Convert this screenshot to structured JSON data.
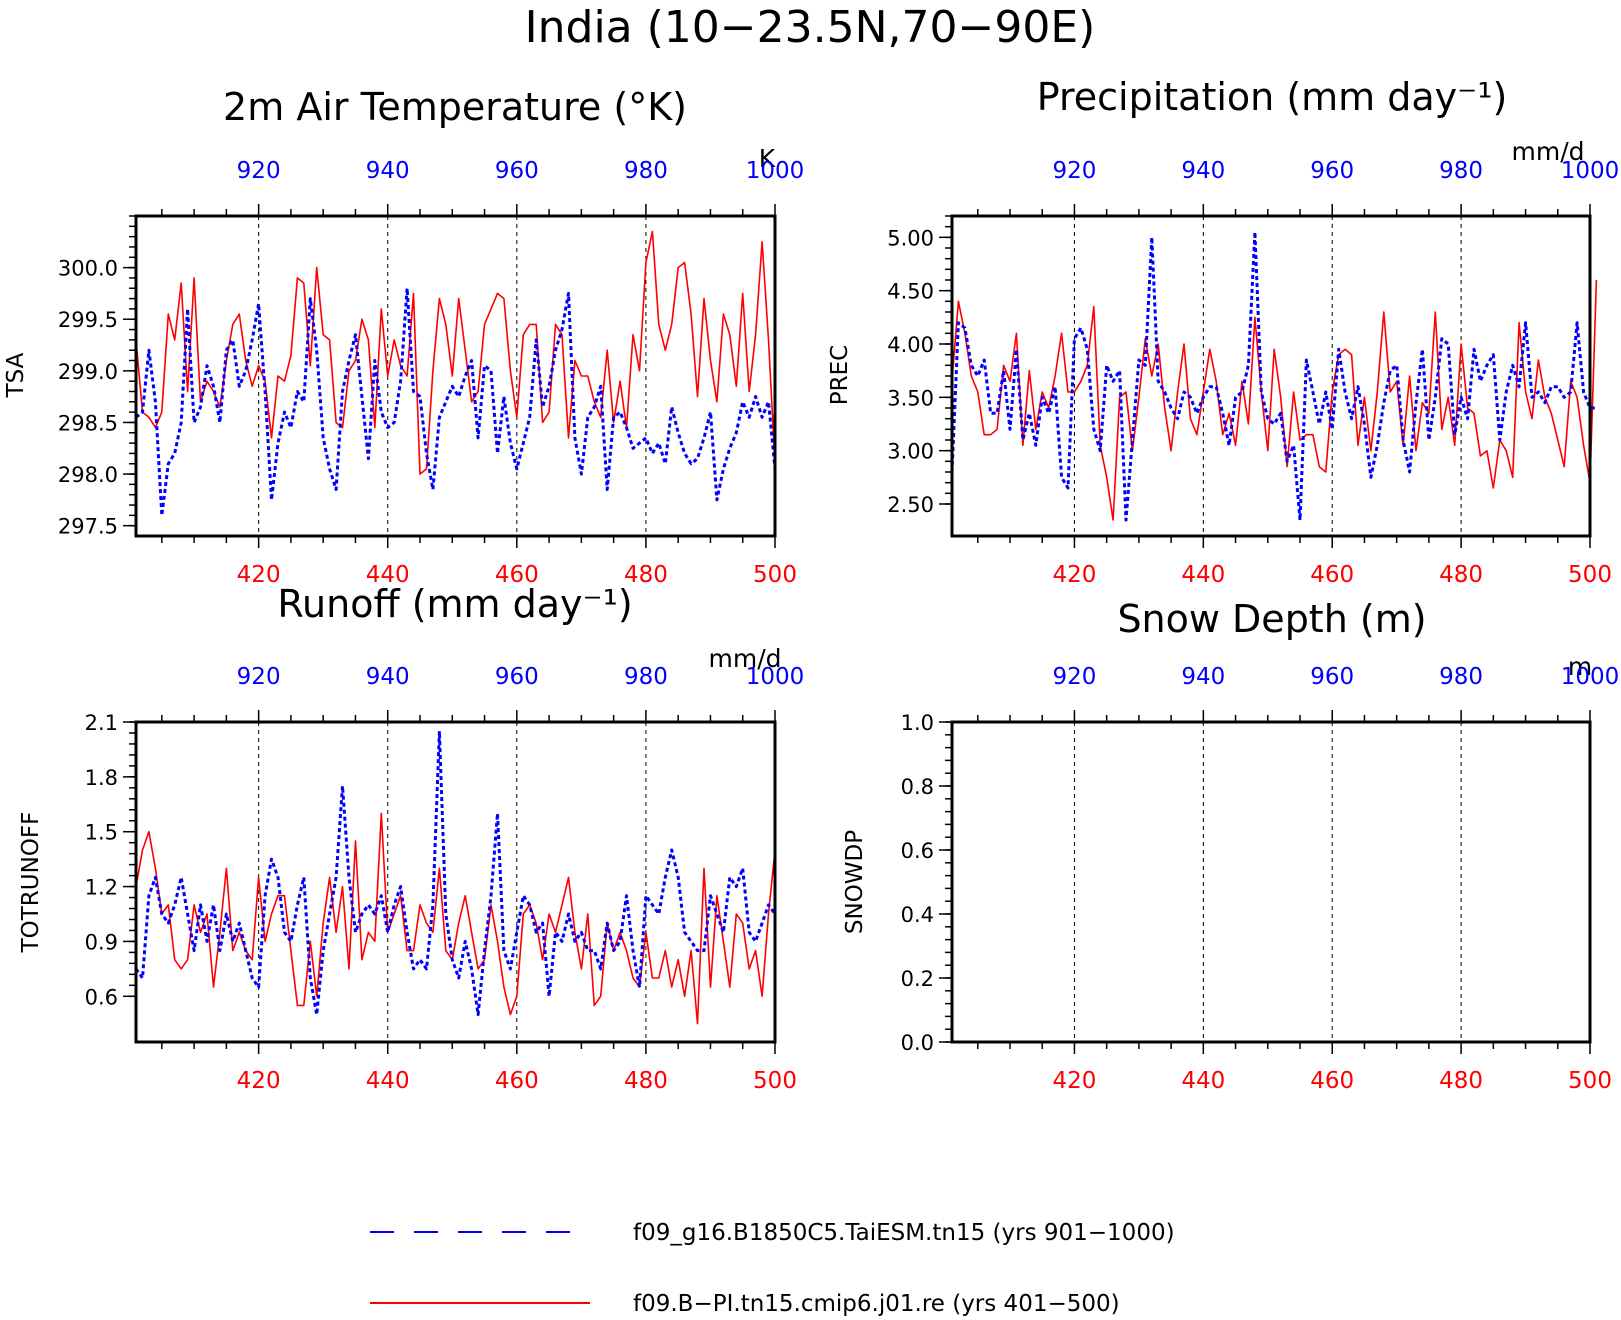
{
  "figure": {
    "title": "India (10−23.5N,70−90E)"
  },
  "legend": {
    "placement": "bottom-center",
    "entries": [
      {
        "label": "f09_g16.B1850C5.TaiESM.tn15 (yrs 901−1000)",
        "color": "#0000ff",
        "style": "dashed"
      },
      {
        "label": "f09.B−PI.tn15.cmip6.j01.re (yrs 401−500)",
        "color": "#ff0000",
        "style": "solid"
      }
    ]
  },
  "panels": [
    {
      "title": "2m Air Temperature (°K)",
      "ylabel": "TSA",
      "unit": "K",
      "yticks": [
        "297.5",
        "298.0",
        "298.5",
        "299.0",
        "299.5",
        "300.0"
      ],
      "top_ticks": [
        "920",
        "940",
        "960",
        "980",
        "1000"
      ],
      "bottom_ticks": [
        "420",
        "440",
        "460",
        "480",
        "500"
      ]
    },
    {
      "title": "Precipitation (mm day⁻¹)",
      "ylabel": "PREC",
      "unit": "mm/d",
      "yticks": [
        "2.50",
        "3.00",
        "3.50",
        "4.00",
        "4.50",
        "5.00"
      ],
      "top_ticks": [
        "920",
        "940",
        "960",
        "980",
        "1000"
      ],
      "bottom_ticks": [
        "420",
        "440",
        "460",
        "480",
        "500"
      ]
    },
    {
      "title": "Runoff (mm day⁻¹)",
      "ylabel": "TOTRUNOFF",
      "unit": "mm/d",
      "yticks": [
        "0.6",
        "0.9",
        "1.2",
        "1.5",
        "1.8",
        "2.1"
      ],
      "top_ticks": [
        "920",
        "940",
        "960",
        "980",
        "1000"
      ],
      "bottom_ticks": [
        "420",
        "440",
        "460",
        "480",
        "500"
      ]
    },
    {
      "title": "Snow Depth (m)",
      "ylabel": "SNOWDP",
      "unit": "m",
      "yticks": [
        "0.0",
        "0.2",
        "0.4",
        "0.6",
        "0.8",
        "1.0"
      ],
      "top_ticks": [
        "920",
        "940",
        "960",
        "980",
        "1000"
      ],
      "bottom_ticks": [
        "420",
        "440",
        "460",
        "480",
        "500"
      ]
    }
  ],
  "chart_data": [
    {
      "type": "line",
      "title": "2m Air Temperature (°K)",
      "ylabel": "TSA",
      "xlim": [
        401,
        500
      ],
      "ylim": [
        297.4,
        300.5
      ],
      "x2lim": [
        901,
        1000
      ],
      "grid": "vertical dashed at 420, 440, 460, 480",
      "series": [
        {
          "name": "f09.B−PI.tn15.cmip6.j01.re (yrs 401−500)",
          "axis": "bottom",
          "color": "#ff0000",
          "style": "solid",
          "x_start": 401,
          "values": [
            299.3,
            298.6,
            298.55,
            298.45,
            298.6,
            299.55,
            299.3,
            299.85,
            298.8,
            299.9,
            298.7,
            298.9,
            298.8,
            298.65,
            299.1,
            299.45,
            299.55,
            299.1,
            298.85,
            299.05,
            298.9,
            298.35,
            298.95,
            298.9,
            299.15,
            299.9,
            299.85,
            299.05,
            300.0,
            299.35,
            299.3,
            298.5,
            298.45,
            299.0,
            299.1,
            299.5,
            299.3,
            298.45,
            299.6,
            298.95,
            299.3,
            299.05,
            298.95,
            299.75,
            298.0,
            298.05,
            299.0,
            299.7,
            299.45,
            298.95,
            299.7,
            299.2,
            298.7,
            298.8,
            299.45,
            299.6,
            299.75,
            299.7,
            299.0,
            298.55,
            299.35,
            299.45,
            299.45,
            298.5,
            298.6,
            299.45,
            299.35,
            298.35,
            299.1,
            298.95,
            298.95,
            298.7,
            298.55,
            299.2,
            298.5,
            298.9,
            298.45,
            299.35,
            299.0,
            300.05,
            300.35,
            299.45,
            299.2,
            299.45,
            300.0,
            300.05,
            299.55,
            298.75,
            299.7,
            299.1,
            298.7,
            299.55,
            299.35,
            298.85,
            299.75,
            298.8,
            299.35,
            300.25,
            299.3,
            298.1
          ]
        },
        {
          "name": "f09_g16.B1850C5.TaiESM.tn15 (yrs 901−1000)",
          "axis": "top",
          "color": "#0000ff",
          "style": "dashed",
          "x_start": 901,
          "values": [
            298.55,
            298.6,
            299.2,
            298.7,
            297.6,
            298.1,
            298.2,
            298.5,
            299.6,
            298.5,
            298.65,
            299.05,
            298.85,
            298.5,
            299.2,
            299.3,
            298.85,
            299.0,
            299.3,
            299.65,
            298.8,
            297.75,
            298.3,
            298.6,
            298.45,
            298.8,
            298.7,
            299.7,
            299.2,
            298.35,
            298.05,
            297.85,
            298.8,
            299.1,
            299.35,
            298.75,
            298.15,
            299.1,
            298.6,
            298.45,
            298.5,
            298.9,
            299.8,
            298.8,
            298.75,
            298.2,
            297.85,
            298.55,
            298.7,
            298.85,
            298.75,
            298.95,
            299.1,
            298.35,
            299.05,
            299.0,
            298.2,
            298.75,
            298.3,
            298.05,
            298.3,
            298.55,
            299.3,
            298.65,
            298.85,
            299.2,
            299.4,
            299.75,
            298.35,
            298.0,
            298.55,
            298.65,
            298.85,
            297.85,
            298.55,
            298.6,
            298.45,
            298.25,
            298.3,
            298.35,
            298.2,
            298.3,
            298.1,
            298.65,
            298.4,
            298.2,
            298.1,
            298.15,
            298.35,
            298.6,
            297.75,
            298.05,
            298.25,
            298.4,
            298.7,
            298.55,
            298.75,
            298.55,
            298.7,
            298.05
          ]
        }
      ]
    },
    {
      "type": "line",
      "title": "Precipitation (mm day⁻¹)",
      "ylabel": "PREC",
      "xlim": [
        401,
        500
      ],
      "ylim": [
        2.2,
        5.2
      ],
      "x2lim": [
        901,
        1000
      ],
      "grid": "vertical dashed at 420, 440, 460, 480",
      "series": [
        {
          "name": "f09.B−PI.tn15.cmip6.j01.re (yrs 401−500)",
          "axis": "bottom",
          "color": "#ff0000",
          "style": "solid",
          "x_start": 401,
          "values": [
            3.65,
            4.4,
            4.1,
            3.7,
            3.55,
            3.15,
            3.15,
            3.2,
            3.8,
            3.65,
            4.1,
            3.05,
            3.75,
            3.2,
            3.55,
            3.4,
            3.7,
            4.1,
            3.55,
            3.55,
            3.65,
            3.8,
            4.35,
            3.05,
            2.75,
            2.35,
            3.5,
            3.55,
            3.0,
            3.5,
            4.05,
            3.7,
            4.0,
            3.4,
            3.0,
            3.55,
            4.0,
            3.3,
            3.15,
            3.55,
            3.95,
            3.65,
            3.15,
            3.35,
            3.05,
            3.65,
            3.25,
            4.25,
            3.55,
            3.0,
            3.95,
            3.5,
            2.85,
            3.55,
            3.1,
            3.15,
            3.15,
            2.85,
            2.8,
            3.55,
            3.9,
            3.95,
            3.9,
            3.05,
            3.5,
            3.0,
            3.55,
            4.3,
            3.55,
            3.65,
            3.05,
            3.7,
            3.0,
            3.45,
            3.35,
            4.3,
            3.2,
            3.5,
            3.05,
            4.0,
            3.4,
            3.35,
            2.95,
            3.0,
            2.65,
            3.1,
            3.0,
            2.75,
            4.2,
            3.55,
            3.3,
            3.85,
            3.5,
            3.35,
            3.1,
            2.85,
            3.65,
            3.5,
            3.05,
            2.7,
            4.6
          ]
        },
        {
          "name": "f09_g16.B1850C5.TaiESM.tn15 (yrs 901−1000)",
          "axis": "top",
          "color": "#0000ff",
          "style": "dashed",
          "x_start": 901,
          "values": [
            2.8,
            4.2,
            4.15,
            3.8,
            3.7,
            3.85,
            3.35,
            3.35,
            3.75,
            3.2,
            3.95,
            3.1,
            3.35,
            3.05,
            3.5,
            3.35,
            3.6,
            2.75,
            2.65,
            4.05,
            4.15,
            3.95,
            3.2,
            3.0,
            3.8,
            3.65,
            3.75,
            2.35,
            3.1,
            3.85,
            3.8,
            5.0,
            3.65,
            3.55,
            3.4,
            3.3,
            3.55,
            3.5,
            3.35,
            3.5,
            3.6,
            3.6,
            3.35,
            3.05,
            3.5,
            3.55,
            3.8,
            5.05,
            3.55,
            3.3,
            3.25,
            3.35,
            2.9,
            3.05,
            2.35,
            3.85,
            3.55,
            3.25,
            3.55,
            3.2,
            3.95,
            3.55,
            3.3,
            3.6,
            3.25,
            2.75,
            3.05,
            3.45,
            3.75,
            3.8,
            3.1,
            2.8,
            3.45,
            3.95,
            3.1,
            3.5,
            4.05,
            4.0,
            3.15,
            3.5,
            3.3,
            3.95,
            3.65,
            3.8,
            3.9,
            3.1,
            3.55,
            3.8,
            3.6,
            4.2,
            3.5,
            3.55,
            3.45,
            3.6,
            3.6,
            3.5,
            3.55,
            4.2,
            3.55,
            3.4,
            3.4
          ]
        }
      ]
    },
    {
      "type": "line",
      "title": "Runoff (mm day⁻¹)",
      "ylabel": "TOTRUNOFF",
      "xlim": [
        401,
        500
      ],
      "ylim": [
        0.35,
        2.1
      ],
      "x2lim": [
        901,
        1000
      ],
      "grid": "vertical dashed at 420, 440, 460, 480",
      "series": [
        {
          "name": "f09.B−PI.tn15.cmip6.j01.re (yrs 401−500)",
          "axis": "bottom",
          "color": "#ff0000",
          "style": "solid",
          "x_start": 401,
          "values": [
            1.2,
            1.4,
            1.5,
            1.3,
            1.05,
            1.1,
            0.8,
            0.75,
            0.8,
            1.1,
            0.95,
            1.05,
            0.65,
            0.95,
            1.3,
            0.85,
            0.95,
            0.85,
            0.8,
            1.25,
            0.9,
            1.05,
            1.15,
            1.15,
            0.85,
            0.55,
            0.55,
            0.9,
            0.6,
            1.0,
            1.25,
            0.95,
            1.2,
            0.75,
            1.45,
            0.8,
            0.95,
            0.9,
            1.6,
            0.95,
            1.05,
            1.15,
            0.85,
            0.85,
            1.1,
            1.0,
            0.95,
            1.3,
            0.85,
            0.8,
            1.0,
            1.15,
            0.95,
            0.75,
            0.8,
            1.1,
            0.9,
            0.65,
            0.5,
            0.6,
            1.05,
            1.1,
            1.0,
            0.8,
            1.05,
            0.95,
            1.1,
            1.25,
            0.95,
            0.75,
            1.05,
            0.55,
            0.6,
            1.0,
            0.85,
            0.95,
            0.85,
            0.7,
            0.65,
            0.95,
            0.7,
            0.7,
            0.85,
            0.65,
            0.8,
            0.6,
            0.85,
            0.45,
            1.3,
            0.65,
            1.15,
            0.9,
            0.65,
            1.05,
            1.0,
            0.75,
            0.85,
            0.6,
            1.05,
            1.4
          ]
        },
        {
          "name": "f09_g16.B1850C5.TaiESM.tn15 (yrs 901−1000)",
          "axis": "top",
          "color": "#0000ff",
          "style": "dashed",
          "x_start": 901,
          "values": [
            0.75,
            0.7,
            1.15,
            1.25,
            1.05,
            1.0,
            1.1,
            1.25,
            1.05,
            0.85,
            1.1,
            0.9,
            1.1,
            0.85,
            1.05,
            0.9,
            1.0,
            0.85,
            0.7,
            0.65,
            1.15,
            1.35,
            1.25,
            0.95,
            0.9,
            1.1,
            1.25,
            0.7,
            0.5,
            0.85,
            1.05,
            1.25,
            1.75,
            1.25,
            0.95,
            1.05,
            1.1,
            1.05,
            1.15,
            0.95,
            1.1,
            1.2,
            0.95,
            0.75,
            0.8,
            0.75,
            1.1,
            2.05,
            1.05,
            0.8,
            0.7,
            0.9,
            0.75,
            0.5,
            0.85,
            1.15,
            1.6,
            0.85,
            0.75,
            0.95,
            1.15,
            1.1,
            0.95,
            1.0,
            0.6,
            0.95,
            0.9,
            1.05,
            0.9,
            0.95,
            0.85,
            0.85,
            0.75,
            1.0,
            0.85,
            0.9,
            1.15,
            0.85,
            0.65,
            1.15,
            1.1,
            1.05,
            1.25,
            1.4,
            1.25,
            0.95,
            0.9,
            0.85,
            0.85,
            1.15,
            1.05,
            0.95,
            1.25,
            1.2,
            1.3,
            0.95,
            0.9,
            1.0,
            1.1,
            1.05
          ]
        }
      ]
    },
    {
      "type": "line",
      "title": "Snow Depth (m)",
      "ylabel": "SNOWDP",
      "xlim": [
        401,
        500
      ],
      "ylim": [
        0.0,
        1.0
      ],
      "x2lim": [
        901,
        1000
      ],
      "grid": "vertical dashed at 420, 440, 460, 480",
      "series": []
    }
  ]
}
